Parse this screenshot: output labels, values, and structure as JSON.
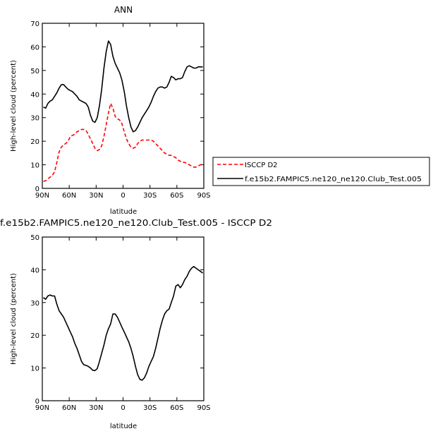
{
  "chart_data": [
    {
      "type": "line",
      "title": "ANN",
      "xlabel": "latitude",
      "ylabel": "High-level cloud (percent)",
      "xlim": [
        90,
        -90
      ],
      "ylim": [
        0,
        70
      ],
      "x_ticks": [
        90,
        60,
        30,
        0,
        -30,
        -60,
        -90
      ],
      "x_tick_labels": [
        "90N",
        "60N",
        "30N",
        "0",
        "30S",
        "60S",
        "90S"
      ],
      "y_ticks": [
        0,
        10,
        20,
        30,
        40,
        50,
        60,
        70
      ],
      "y_tick_labels": [
        "0",
        "10",
        "20",
        "30",
        "40",
        "50",
        "60",
        "70"
      ],
      "legend": "right",
      "grid": false,
      "series": [
        {
          "name": "ISCCP D2",
          "color": "#ff0000",
          "dash": "dashed",
          "x": [
            88.8,
            86.3,
            83.8,
            81.3,
            78.8,
            76.3,
            73.8,
            71.3,
            68.8,
            66.3,
            63.8,
            61.3,
            58.8,
            56.3,
            53.8,
            51.3,
            48.8,
            46.3,
            43.8,
            41.3,
            38.8,
            36.3,
            33.8,
            31.3,
            28.8,
            26.3,
            23.8,
            21.3,
            18.8,
            16.3,
            13.8,
            11.3,
            8.8,
            6.3,
            3.8,
            1.3,
            -1.3,
            -3.8,
            -6.3,
            -8.8,
            -11.3,
            -13.8,
            -16.3,
            -18.8,
            -21.3,
            -23.8,
            -26.3,
            -28.8,
            -31.3,
            -33.8,
            -36.3,
            -38.8,
            -41.3,
            -43.8,
            -46.3,
            -48.8,
            -51.3,
            -53.8,
            -56.3,
            -58.8,
            -61.3,
            -63.8,
            -66.3,
            -68.8,
            -71.3,
            -73.8,
            -76.3,
            -78.8,
            -81.3,
            -83.8,
            -86.3,
            -88.8
          ],
          "values": [
            3.0,
            3.2,
            4.0,
            4.8,
            5.5,
            7.0,
            11.0,
            15.5,
            17.5,
            18.5,
            19.0,
            20.0,
            22.0,
            22.5,
            23.0,
            24.0,
            24.5,
            25.0,
            25.0,
            24.5,
            23.0,
            21.0,
            19.0,
            17.0,
            16.0,
            16.5,
            18.0,
            22.0,
            27.0,
            32.0,
            36.0,
            34.0,
            30.5,
            29.5,
            29.0,
            27.5,
            24.0,
            21.0,
            19.0,
            17.5,
            17.0,
            17.5,
            19.0,
            20.0,
            20.5,
            20.5,
            20.5,
            20.5,
            20.5,
            20.0,
            19.0,
            18.0,
            17.0,
            16.0,
            15.0,
            14.5,
            14.0,
            14.0,
            13.5,
            13.0,
            12.0,
            11.5,
            11.0,
            11.0,
            10.5,
            10.0,
            9.5,
            9.0,
            9.0,
            9.5,
            10.0,
            10.5
          ]
        },
        {
          "name": "f.e15b2.FAMPIC5.ne120_ne120.Club_Test.005",
          "color": "#000000",
          "dash": "solid",
          "x": [
            88.8,
            86.3,
            83.8,
            81.3,
            78.8,
            76.3,
            73.8,
            71.3,
            68.8,
            66.3,
            63.8,
            61.3,
            58.8,
            56.3,
            53.8,
            51.3,
            48.8,
            46.3,
            43.8,
            41.3,
            38.8,
            36.3,
            33.8,
            31.3,
            28.8,
            26.3,
            23.8,
            21.3,
            18.8,
            16.3,
            13.8,
            11.3,
            8.8,
            6.3,
            3.8,
            1.3,
            -1.3,
            -3.8,
            -6.3,
            -8.8,
            -11.3,
            -13.8,
            -16.3,
            -18.8,
            -21.3,
            -23.8,
            -26.3,
            -28.8,
            -31.3,
            -33.8,
            -36.3,
            -38.8,
            -41.3,
            -43.8,
            -46.3,
            -48.8,
            -51.3,
            -53.8,
            -56.3,
            -58.8,
            -61.3,
            -63.8,
            -66.3,
            -68.8,
            -71.3,
            -73.8,
            -76.3,
            -78.8,
            -81.3,
            -83.8,
            -86.3,
            -88.8
          ],
          "values": [
            34.5,
            34.0,
            36.0,
            37.0,
            37.5,
            39.0,
            40.5,
            42.5,
            44.0,
            44.0,
            43.0,
            42.0,
            41.5,
            41.0,
            40.0,
            39.0,
            37.5,
            37.0,
            36.5,
            36.0,
            34.5,
            31.0,
            28.5,
            28.0,
            30.0,
            35.0,
            42.0,
            51.0,
            58.0,
            62.5,
            61.0,
            56.0,
            53.0,
            51.0,
            49.0,
            46.0,
            41.0,
            35.0,
            30.0,
            26.0,
            24.0,
            24.5,
            26.0,
            28.0,
            30.0,
            31.5,
            33.0,
            34.5,
            36.5,
            39.0,
            41.0,
            42.5,
            43.0,
            43.0,
            42.5,
            43.0,
            45.0,
            47.5,
            47.0,
            46.0,
            46.5,
            46.5,
            47.0,
            49.5,
            51.5,
            52.0,
            51.5,
            51.0,
            51.0,
            51.5,
            51.5,
            51.5
          ]
        }
      ]
    },
    {
      "type": "line",
      "title": "f.e15b2.FAMPIC5.ne120_ne120.Club_Test.005 - ISCCP D2",
      "xlabel": "latitude",
      "ylabel": "High-level cloud (percent)",
      "xlim": [
        90,
        -90
      ],
      "ylim": [
        0,
        50
      ],
      "x_ticks": [
        90,
        60,
        30,
        0,
        -30,
        -60,
        -90
      ],
      "x_tick_labels": [
        "90N",
        "60N",
        "30N",
        "0",
        "30S",
        "60S",
        "90S"
      ],
      "y_ticks": [
        0,
        10,
        20,
        30,
        40,
        50
      ],
      "y_tick_labels": [
        "0",
        "10",
        "20",
        "30",
        "40",
        "50"
      ],
      "grid": false,
      "series": [
        {
          "color": "#000000",
          "dash": "solid",
          "x": [
            88.8,
            86.3,
            83.8,
            81.3,
            78.8,
            76.3,
            73.8,
            71.3,
            68.8,
            66.3,
            63.8,
            61.3,
            58.8,
            56.3,
            53.8,
            51.3,
            48.8,
            46.3,
            43.8,
            41.3,
            38.8,
            36.3,
            33.8,
            31.3,
            28.8,
            26.3,
            23.8,
            21.3,
            18.8,
            16.3,
            13.8,
            11.3,
            8.8,
            6.3,
            3.8,
            1.3,
            -1.3,
            -3.8,
            -6.3,
            -8.8,
            -11.3,
            -13.8,
            -16.3,
            -18.8,
            -21.3,
            -23.8,
            -26.3,
            -28.8,
            -31.3,
            -33.8,
            -36.3,
            -38.8,
            -41.3,
            -43.8,
            -46.3,
            -48.8,
            -51.3,
            -53.8,
            -56.3,
            -58.8,
            -61.3,
            -63.8,
            -66.3,
            -68.8,
            -71.3,
            -73.8,
            -76.3,
            -78.8,
            -81.3,
            -83.8,
            -86.3,
            -88.8
          ],
          "values": [
            31.5,
            31.0,
            32.0,
            32.3,
            32.0,
            32.0,
            29.5,
            27.5,
            26.5,
            25.5,
            24.0,
            22.5,
            21.0,
            19.5,
            17.5,
            16.0,
            14.0,
            12.0,
            11.0,
            10.8,
            10.5,
            10.0,
            9.3,
            9.2,
            9.8,
            12.0,
            14.5,
            17.0,
            20.0,
            22.0,
            23.5,
            26.5,
            26.5,
            25.5,
            24.0,
            22.5,
            21.0,
            19.5,
            18.0,
            16.0,
            13.5,
            10.5,
            8.0,
            6.5,
            6.3,
            7.0,
            8.5,
            10.5,
            12.0,
            13.5,
            16.0,
            19.0,
            22.0,
            24.5,
            26.5,
            27.5,
            28.0,
            30.0,
            32.0,
            35.0,
            35.5,
            34.5,
            35.5,
            37.0,
            38.0,
            39.5,
            40.5,
            41.0,
            40.5,
            40.0,
            39.5,
            39.0
          ]
        }
      ]
    }
  ]
}
